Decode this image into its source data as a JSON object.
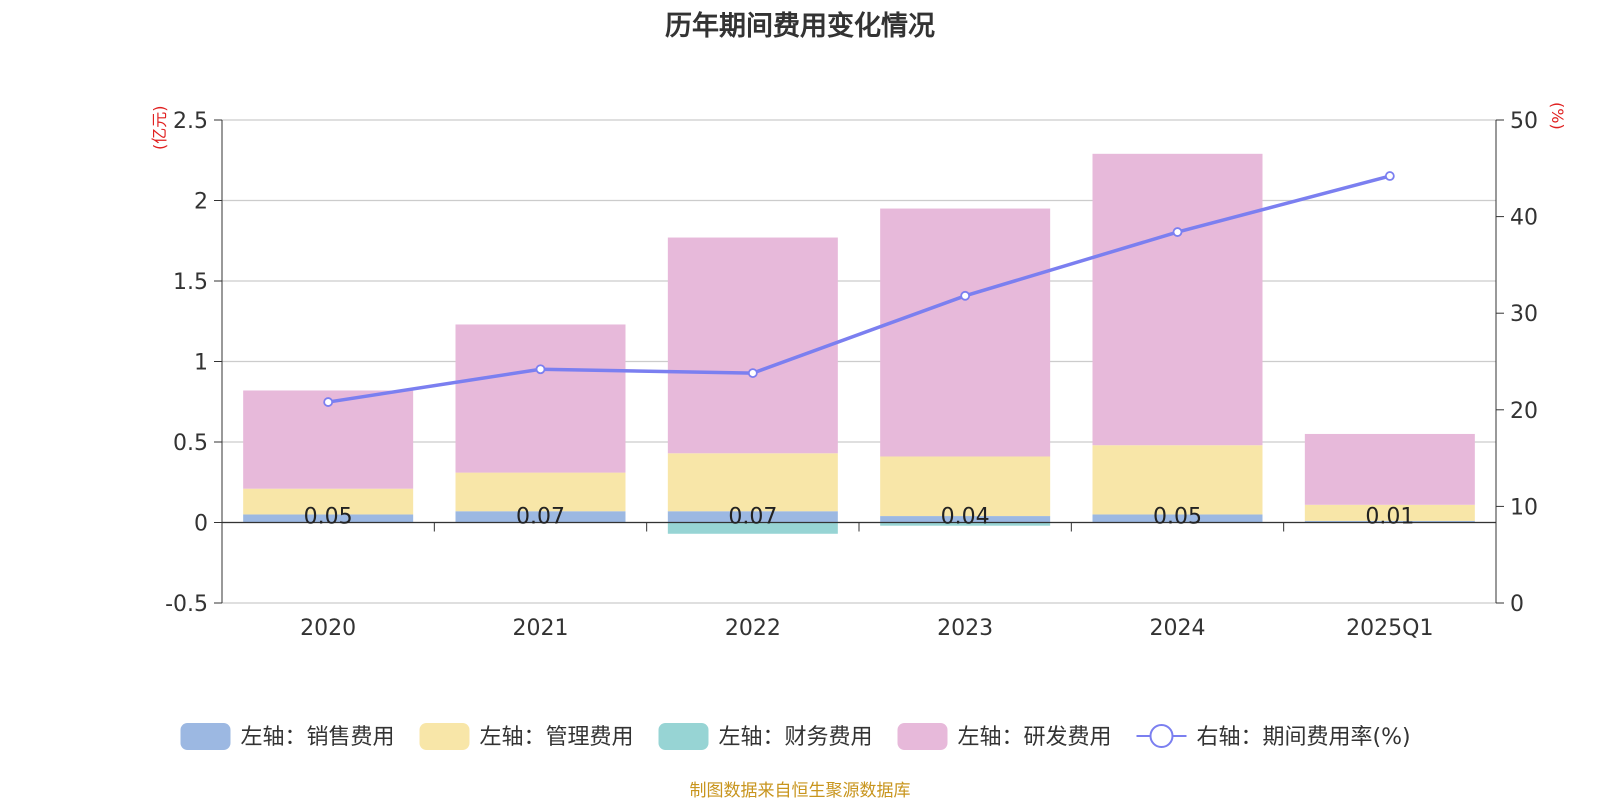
{
  "chart_data": {
    "type": "bar",
    "title": "历年期间费用变化情况",
    "left_unit": "(亿元)",
    "right_unit": "(%)",
    "categories": [
      "2020",
      "2021",
      "2022",
      "2023",
      "2024",
      "2025Q1"
    ],
    "left_axis": {
      "ylim": [
        -0.5,
        2.5
      ],
      "ticks": [
        "-0.5",
        "0",
        "0.5",
        "1",
        "1.5",
        "2",
        "2.5"
      ]
    },
    "right_axis": {
      "ylim": [
        0,
        50
      ],
      "ticks": [
        "0",
        "10",
        "20",
        "30",
        "40",
        "50"
      ]
    },
    "series": [
      {
        "name": "左轴：销售费用",
        "axis": "left",
        "stack": true,
        "color": "#9cb8e2",
        "values": [
          0.05,
          0.07,
          0.07,
          0.04,
          0.05,
          0.01
        ]
      },
      {
        "name": "左轴：管理费用",
        "axis": "left",
        "stack": true,
        "color": "#f8e6a8",
        "values": [
          0.16,
          0.24,
          0.36,
          0.37,
          0.43,
          0.1
        ]
      },
      {
        "name": "左轴：财务费用",
        "axis": "left",
        "stack": true,
        "color": "#97d4d4",
        "values": [
          0.0,
          0.0,
          -0.07,
          -0.02,
          0.0,
          0.0
        ]
      },
      {
        "name": "左轴：研发费用",
        "axis": "left",
        "stack": true,
        "color": "#e7b9da",
        "values": [
          0.61,
          0.92,
          1.34,
          1.54,
          1.81,
          0.44
        ]
      },
      {
        "name": "右轴：期间费用率(%)",
        "axis": "right",
        "type": "line",
        "color": "#7b7ff0",
        "values": [
          20.8,
          24.2,
          23.8,
          31.8,
          38.4,
          44.2
        ]
      }
    ],
    "data_labels": [
      "0.05",
      "0.07",
      "0.07",
      "0.04",
      "0.05",
      "0.01"
    ],
    "grid": true,
    "legend_position": "bottom"
  },
  "source_text": "制图数据来自恒生聚源数据库"
}
